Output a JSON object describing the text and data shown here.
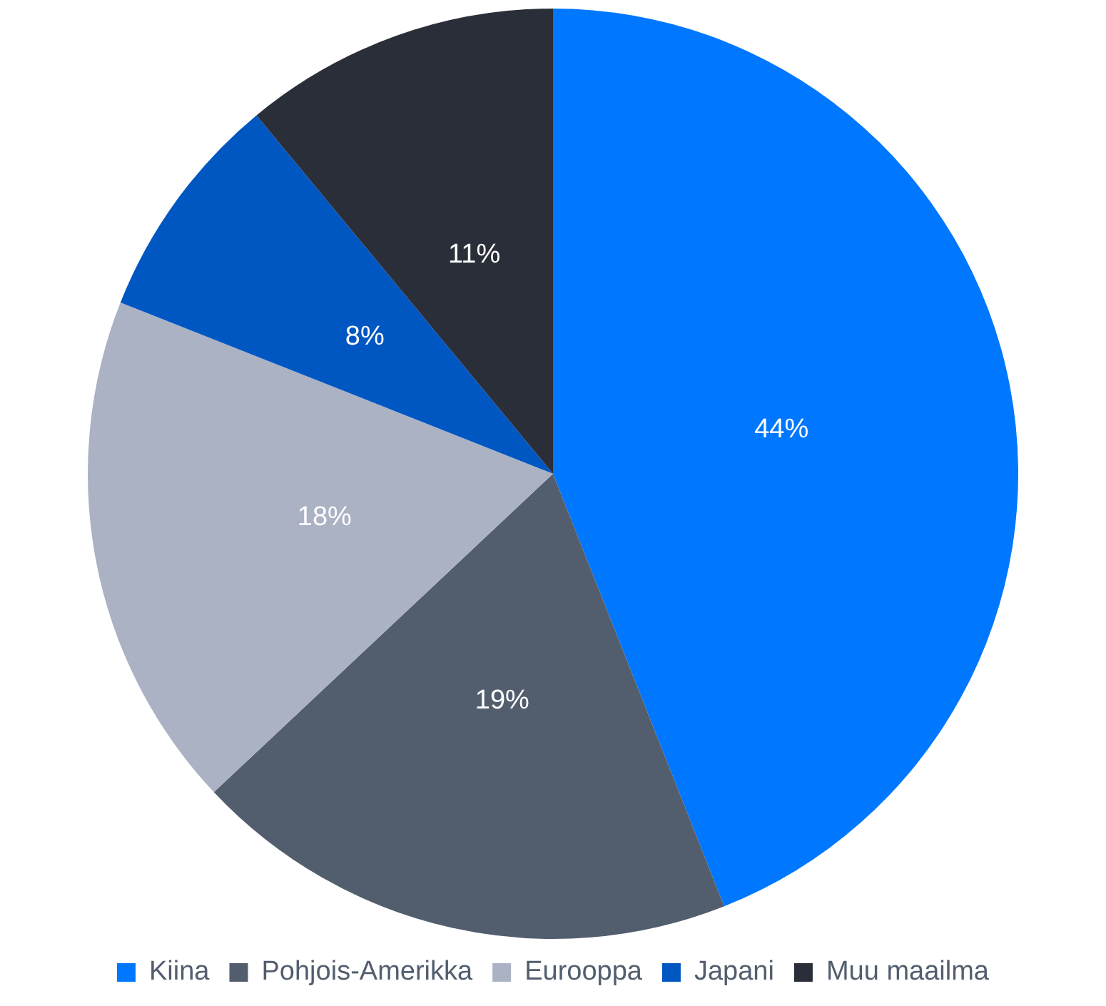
{
  "chart_data": {
    "type": "pie",
    "categories": [
      "Kiina",
      "Pohjois-Amerikka",
      "Eurooppa",
      "Japani",
      "Muu maailma"
    ],
    "values": [
      44,
      19,
      18,
      8,
      11
    ],
    "colors": [
      "#0077ff",
      "#525e6e",
      "#abb2c4",
      "#0057c2",
      "#2a2e38"
    ],
    "value_labels": [
      "44%",
      "19%",
      "18%",
      "8%",
      "11%"
    ],
    "legend": "bottom"
  }
}
